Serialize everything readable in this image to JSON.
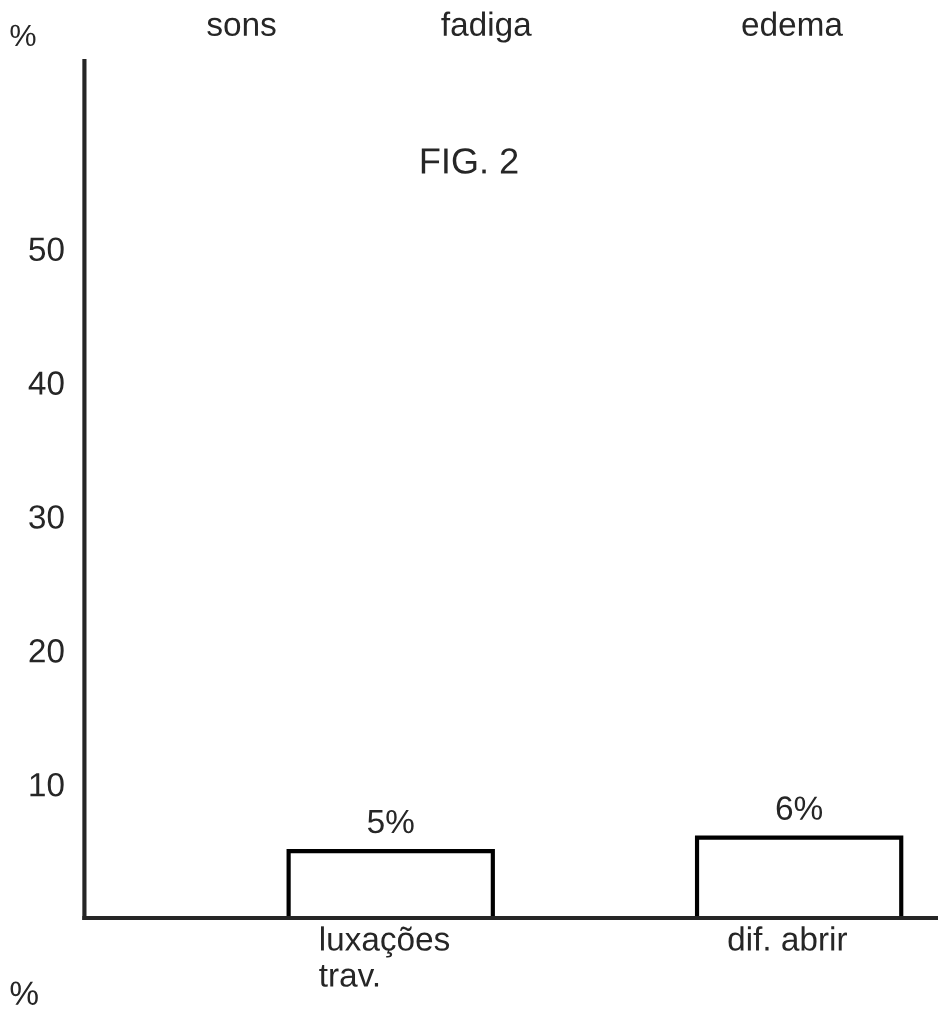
{
  "chart_data": {
    "type": "bar",
    "title": "FIG. 2",
    "ylabel": "%",
    "categories": [
      "luxações\ntrav.",
      "dif. abrir"
    ],
    "values": [
      5,
      6
    ],
    "value_labels": [
      "5%",
      "6%"
    ],
    "color": "#ffffff",
    "ylim": [
      0,
      64
    ],
    "yticks": [
      10,
      20,
      30,
      40,
      50
    ],
    "grid": false,
    "annotations": [
      "sons",
      "fadiga",
      "edema",
      "%"
    ]
  }
}
